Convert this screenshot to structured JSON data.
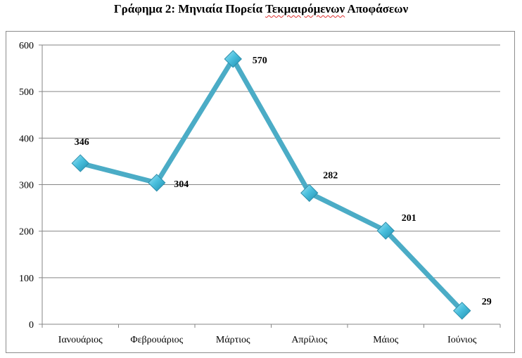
{
  "title_prefix": "Γράφημα 2: Μηνιαία Πορεία ",
  "title_underlined": "Τεκμαιρόμενων",
  "title_suffix": " Αποφάσεων",
  "chart_data": {
    "type": "line",
    "title": "Γράφημα 2: Μηνιαία Πορεία Τεκμαιρόμενων Αποφάσεων",
    "categories": [
      "Ιανουάριος",
      "Φεβρουάριος",
      "Μάρτιος",
      "Απρίλιος",
      "Μάιος",
      "Ιούνιος"
    ],
    "series": [
      {
        "values": [
          346,
          304,
          570,
          282,
          201,
          29
        ]
      }
    ],
    "data_labels": [
      "346",
      "304",
      "570",
      "282",
      "201",
      "29"
    ],
    "yticks": [
      0,
      100,
      200,
      300,
      400,
      500,
      600
    ],
    "ylim": [
      0,
      600
    ],
    "xlabel": "",
    "ylabel": "",
    "grid": true,
    "legend": "none",
    "colors": {
      "line": "#4bacc6",
      "marker": "#4bacc6",
      "grid": "#868686",
      "axis": "#868686"
    }
  }
}
